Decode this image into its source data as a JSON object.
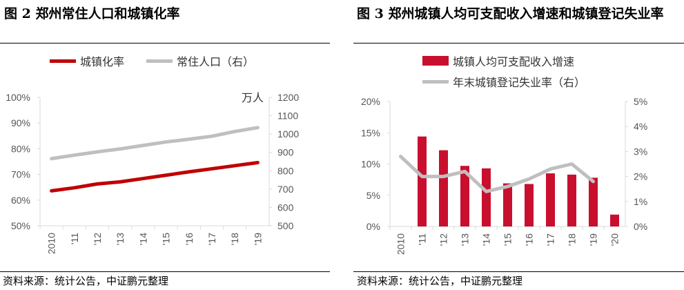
{
  "left": {
    "title": "图 2  郑州常住人口和城镇化率",
    "source": "资料来源：统计公告，中证鹏元整理"
  },
  "right": {
    "title": "图 3  郑州城镇人均可支配收入增速和城镇登记失业率",
    "source": "资料来源：统计公告，中证鹏元整理"
  },
  "chart_data": [
    {
      "type": "line",
      "categories": [
        "2010",
        "'11",
        "'12",
        "'13",
        "'14",
        "'15",
        "'16",
        "'17",
        "'18",
        "'19"
      ],
      "series": [
        {
          "name": "城镇化率",
          "axis": "left",
          "color": "#C00000",
          "values": [
            63.6,
            64.8,
            66.3,
            67.1,
            68.4,
            69.7,
            71.0,
            72.2,
            73.4,
            74.6
          ]
        },
        {
          "name": "常住人口（右）",
          "axis": "right",
          "color": "#BFBFBF",
          "values": [
            866,
            885,
            903,
            919,
            938,
            957,
            972,
            988,
            1014,
            1035
          ]
        }
      ],
      "ylim": [
        50,
        100
      ],
      "yticks": [
        "50%",
        "60%",
        "70%",
        "80%",
        "90%",
        "100%"
      ],
      "y2lim": [
        500,
        1200
      ],
      "y2ticks": [
        "500",
        "600",
        "700",
        "800",
        "900",
        "1000",
        "1100",
        "1200"
      ],
      "y2unit": "万人",
      "legend": "top"
    },
    {
      "type": "bar+line",
      "categories": [
        "2010",
        "'11",
        "'12",
        "'13",
        "'14",
        "'15",
        "'16",
        "'17",
        "'18",
        "'19",
        "'20"
      ],
      "series": [
        {
          "name": "城镇人均可支配收入增速",
          "type": "bar",
          "axis": "left",
          "color": "#C8102E",
          "values": [
            null,
            14.4,
            12.2,
            9.7,
            9.3,
            6.9,
            6.8,
            8.5,
            8.3,
            7.8,
            1.9
          ]
        },
        {
          "name": "年末城镇登记失业率（右）",
          "type": "line",
          "axis": "right",
          "color": "#BFBFBF",
          "values": [
            2.8,
            2.0,
            2.0,
            2.2,
            1.4,
            1.6,
            1.9,
            2.3,
            2.5,
            1.8,
            null
          ]
        }
      ],
      "ylim": [
        0,
        20
      ],
      "yticks": [
        "0%",
        "5%",
        "10%",
        "15%",
        "20%"
      ],
      "y2lim": [
        0,
        5
      ],
      "y2ticks": [
        "0%",
        "1%",
        "2%",
        "3%",
        "4%",
        "5%"
      ],
      "legend": "top"
    }
  ]
}
